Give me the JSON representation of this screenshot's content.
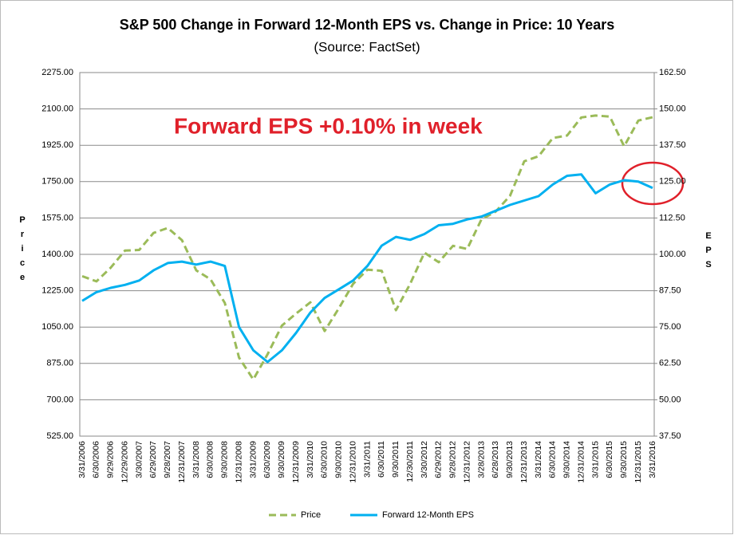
{
  "chart_data": {
    "type": "line",
    "title": "S&P 500 Change in Forward 12-Month EPS vs. Change in Price: 10 Years",
    "subtitle": "(Source: FactSet)",
    "annotation": "Forward EPS +0.10% in week",
    "ylabel": "Price",
    "y2label": "EPS",
    "categories": [
      "3/31/2006",
      "6/30/2006",
      "9/29/2006",
      "12/29/2006",
      "3/30/2007",
      "6/29/2007",
      "9/28/2007",
      "12/31/2007",
      "3/31/2008",
      "6/30/2008",
      "9/30/2008",
      "12/31/2008",
      "3/31/2009",
      "6/30/2009",
      "9/30/2009",
      "12/31/2009",
      "3/31/2010",
      "6/30/2010",
      "9/30/2010",
      "12/31/2010",
      "3/31/2011",
      "6/30/2011",
      "9/30/2011",
      "12/30/2011",
      "3/30/2012",
      "6/29/2012",
      "9/28/2012",
      "12/31/2012",
      "3/28/2013",
      "6/28/2013",
      "9/30/2013",
      "12/31/2013",
      "3/31/2014",
      "6/30/2014",
      "9/30/2014",
      "12/31/2014",
      "3/31/2015",
      "6/30/2015",
      "9/30/2015",
      "12/31/2015",
      "3/31/2016"
    ],
    "series": [
      {
        "name": "Price",
        "color": "#9bbb59",
        "dashed": true,
        "values": [
          1295,
          1270,
          1336,
          1418,
          1421,
          1503,
          1527,
          1468,
          1323,
          1280,
          1166,
          903,
          798,
          919,
          1057,
          1115,
          1169,
          1031,
          1141,
          1258,
          1326,
          1321,
          1131,
          1258,
          1408,
          1362,
          1441,
          1426,
          1569,
          1606,
          1682,
          1848,
          1872,
          1960,
          1972,
          2059,
          2068,
          2063,
          1920,
          2044,
          2060
        ]
      },
      {
        "name": "Forward 12-Month EPS",
        "color": "#00b0f0",
        "axis": "y2",
        "values": [
          84,
          87,
          88.5,
          89.5,
          91,
          94.5,
          97,
          97.5,
          96.5,
          97.5,
          96,
          75,
          67,
          63,
          67,
          73,
          80,
          85,
          88,
          91,
          96,
          103,
          106,
          105,
          107,
          110,
          110.5,
          112,
          113,
          115,
          117,
          118.5,
          120,
          124,
          127,
          127.5,
          121,
          124,
          125.5,
          125,
          122.8
        ]
      }
    ],
    "ylim": [
      525,
      2275
    ],
    "yticks": [
      {
        "value": 525,
        "label": "525.00"
      },
      {
        "value": 700,
        "label": "700.00"
      },
      {
        "value": 875,
        "label": "875.00"
      },
      {
        "value": 1050,
        "label": "1050.00"
      },
      {
        "value": 1225,
        "label": "1225.00"
      },
      {
        "value": 1400,
        "label": "1400.00"
      },
      {
        "value": 1575,
        "label": "1575.00"
      },
      {
        "value": 1750,
        "label": "1750.00"
      },
      {
        "value": 1925,
        "label": "1925.00"
      },
      {
        "value": 2100,
        "label": "2100.00"
      },
      {
        "value": 2275,
        "label": "2275.00"
      }
    ],
    "y2lim": [
      37.5,
      162.5
    ],
    "y2ticks": [
      {
        "value": 37.5,
        "label": "37.50"
      },
      {
        "value": 50,
        "label": "50.00"
      },
      {
        "value": 62.5,
        "label": "62.50"
      },
      {
        "value": 75,
        "label": "75.00"
      },
      {
        "value": 87.5,
        "label": "87.50"
      },
      {
        "value": 100,
        "label": "100.00"
      },
      {
        "value": 112.5,
        "label": "112.50"
      },
      {
        "value": 125,
        "label": "125.00"
      },
      {
        "value": 137.5,
        "label": "137.50"
      },
      {
        "value": 150,
        "label": "150.00"
      },
      {
        "value": 162.5,
        "label": "162.50"
      }
    ],
    "grid": true
  }
}
